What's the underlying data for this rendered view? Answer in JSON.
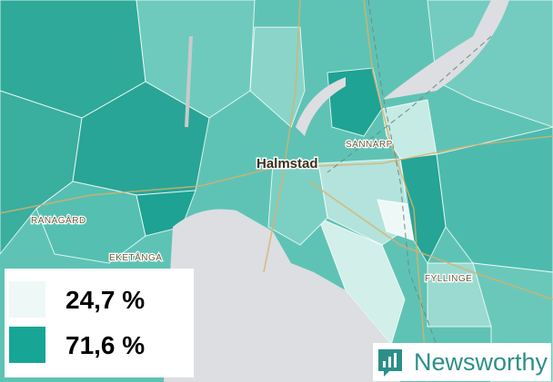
{
  "map": {
    "places": [
      {
        "label": "Halmstad",
        "kind": "city"
      },
      {
        "label": "SANNARP",
        "kind": "district"
      },
      {
        "label": "RANAGÅRD",
        "kind": "district"
      },
      {
        "label": "EKETÅNGA",
        "kind": "district"
      },
      {
        "label": "FYLLINGE",
        "kind": "district"
      }
    ],
    "legend": {
      "items": [
        {
          "label": "24,7 %",
          "color": "#eef9f7"
        },
        {
          "label": "71,6 %",
          "color": "#17a596"
        }
      ]
    },
    "brand": "Newsworthy"
  }
}
